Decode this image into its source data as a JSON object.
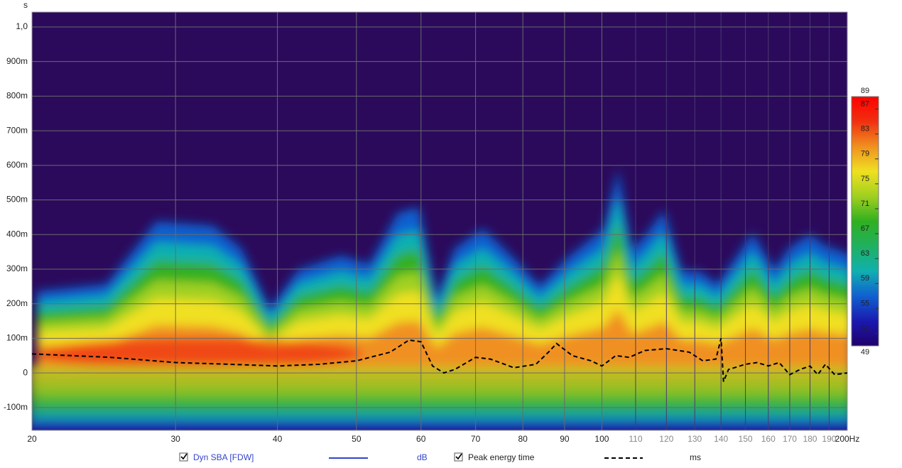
{
  "chart_data": {
    "type": "spectrogram",
    "y_unit": "s",
    "xscale": "log",
    "grid": true,
    "background": "#2b0a5c",
    "xlim": [
      20,
      200
    ],
    "xticks": [
      20,
      30,
      40,
      50,
      60,
      70,
      80,
      90,
      100,
      {
        "value": 200,
        "label": "200Hz"
      }
    ],
    "xticks_minor": [
      110,
      120,
      130,
      140,
      150,
      160,
      170,
      180,
      190
    ],
    "ylim": [
      -0.166,
      1.043
    ],
    "yticks": [
      {
        "value": -0.1,
        "label": "-100m"
      },
      0,
      {
        "value": 0.1,
        "label": "100m"
      },
      {
        "value": 0.2,
        "label": "200m"
      },
      {
        "value": 0.3,
        "label": "300m"
      },
      {
        "value": 0.4,
        "label": "400m"
      },
      {
        "value": 0.5,
        "label": "500m"
      },
      {
        "value": 0.6,
        "label": "600m"
      },
      {
        "value": 0.7,
        "label": "700m"
      },
      {
        "value": 0.8,
        "label": "800m"
      },
      {
        "value": 0.9,
        "label": "900m"
      },
      {
        "value": 1.0,
        "label": "1,0"
      }
    ],
    "colorbar": {
      "range": [
        49,
        89
      ],
      "ticks": [
        51,
        55,
        59,
        63,
        67,
        71,
        75,
        79,
        83,
        87
      ],
      "colors": [
        "#20006a",
        "#1a1ab0",
        "#1060d0",
        "#10b0b0",
        "#20b060",
        "#30b020",
        "#a0d020",
        "#f0e020",
        "#f09020",
        "#f03010",
        "#ff0000"
      ]
    },
    "series": [
      {
        "name": "Dyn SBA [FDW]",
        "unit": "dB",
        "color": "#3344cc",
        "checked": true
      },
      {
        "name": "Peak energy time",
        "unit": "ms",
        "color": "#000000",
        "dashed": true,
        "checked": true,
        "x": [
          20,
          25,
          30,
          35,
          40,
          45,
          50,
          55,
          58,
          60,
          62,
          64,
          66,
          70,
          73,
          78,
          83,
          86,
          88,
          92,
          97,
          100,
          104,
          108,
          113,
          120,
          128,
          133,
          138,
          140,
          141,
          143,
          150,
          155,
          160,
          165,
          170,
          175,
          180,
          184,
          188,
          193,
          200
        ],
        "values": [
          0.055,
          0.045,
          0.03,
          0.025,
          0.02,
          0.025,
          0.035,
          0.06,
          0.095,
          0.09,
          0.02,
          0.0,
          0.01,
          0.045,
          0.04,
          0.015,
          0.025,
          0.06,
          0.085,
          0.05,
          0.035,
          0.02,
          0.05,
          0.045,
          0.065,
          0.07,
          0.06,
          0.035,
          0.04,
          0.1,
          -0.025,
          0.01,
          0.025,
          0.03,
          0.02,
          0.03,
          -0.005,
          0.01,
          0.02,
          -0.005,
          0.025,
          -0.005,
          0.0
        ]
      }
    ]
  }
}
